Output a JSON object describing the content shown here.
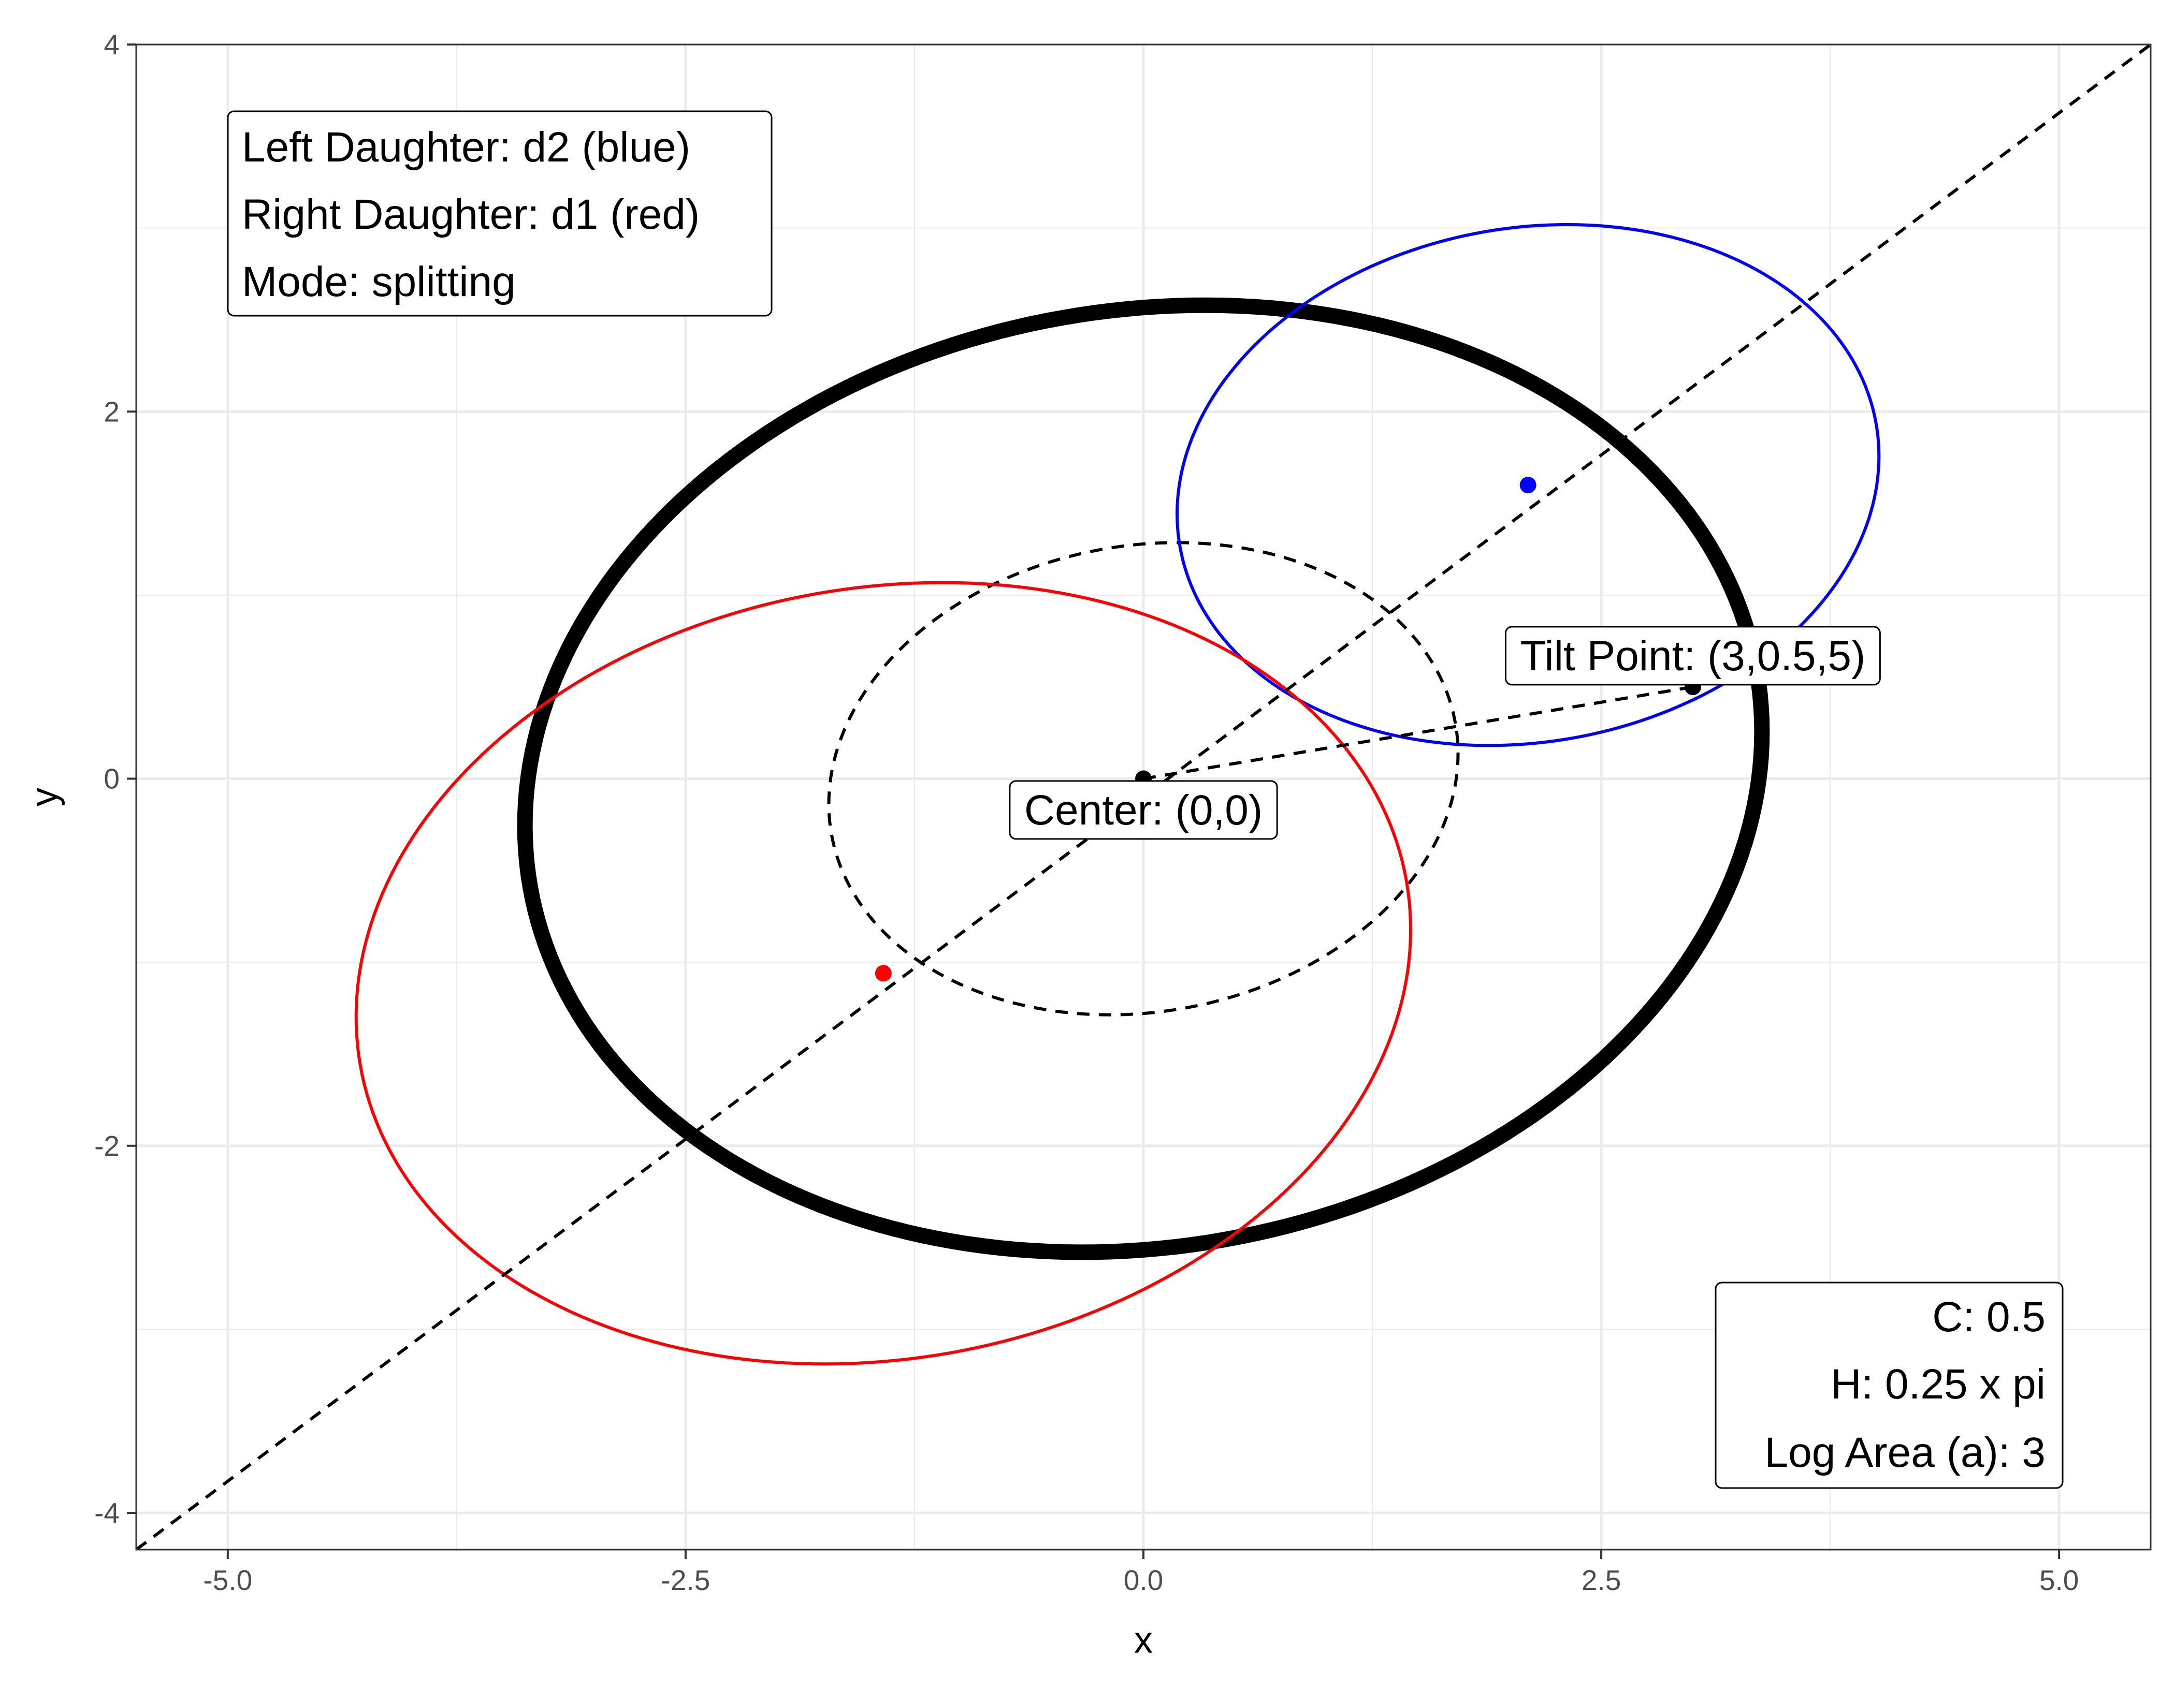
{
  "chart_data": {
    "type": "scatter",
    "title": "",
    "xlabel": "x",
    "ylabel": "y",
    "xlim": [
      -5.5,
      5.5
    ],
    "ylim": [
      -4.2,
      4
    ],
    "grid": true,
    "x_ticks": [
      -5.0,
      -2.5,
      0.0,
      2.5,
      5.0
    ],
    "x_tick_labels": [
      "-5.0",
      "-2.5",
      "0.0",
      "2.5",
      "5.0"
    ],
    "y_ticks": [
      -4,
      -2,
      0,
      2,
      4
    ],
    "y_tick_labels": [
      "-4",
      "-2",
      "0",
      "2",
      "4"
    ],
    "colors": {
      "blue": "#0000ff",
      "red": "#ff0000",
      "black": "#000000"
    },
    "ellipses": [
      {
        "name": "parent",
        "center": [
          0,
          0
        ],
        "a": 3.4,
        "b": 2.55,
        "angle_deg": 10,
        "color": "#000000",
        "line": "thick"
      },
      {
        "name": "inner",
        "center": [
          0,
          0
        ],
        "a": 1.73,
        "b": 1.27,
        "angle_deg": 10,
        "color": "#000000",
        "line": "dashed"
      },
      {
        "name": "d2",
        "center": [
          2.1,
          1.6
        ],
        "a": 1.93,
        "b": 1.4,
        "angle_deg": 10,
        "color": "#0000ff",
        "line": "solid"
      },
      {
        "name": "d1",
        "center": [
          -1.42,
          -1.06
        ],
        "a": 2.9,
        "b": 2.1,
        "angle_deg": 10,
        "color": "#ff0000",
        "line": "solid"
      }
    ],
    "points": [
      {
        "x": 0,
        "y": 0,
        "color": "#000000"
      },
      {
        "x": 3,
        "y": 0.5,
        "color": "#000000"
      },
      {
        "x": 2.1,
        "y": 1.6,
        "color": "#0000ff"
      },
      {
        "x": -1.42,
        "y": -1.06,
        "color": "#ff0000"
      }
    ],
    "lines": [
      {
        "from": [
          -5.5,
          -4.2
        ],
        "to": [
          5.5,
          4.0
        ],
        "style": "dashed"
      },
      {
        "from": [
          0,
          0
        ],
        "to": [
          3,
          0.5
        ],
        "style": "dashed"
      }
    ],
    "labels": [
      {
        "text": "Center: (0,0)",
        "x": 0,
        "y": -0.17
      },
      {
        "text": "Tilt Point: (3,0.5,5)",
        "x": 3,
        "y": 0.67
      }
    ],
    "info_box_left": [
      "Left Daughter: d2 (blue)",
      "Right Daughter: d1 (red)",
      "Mode: splitting"
    ],
    "info_box_right": [
      "C: 0.5",
      "H: 0.25 x pi",
      "Log Area (a): 3"
    ]
  }
}
